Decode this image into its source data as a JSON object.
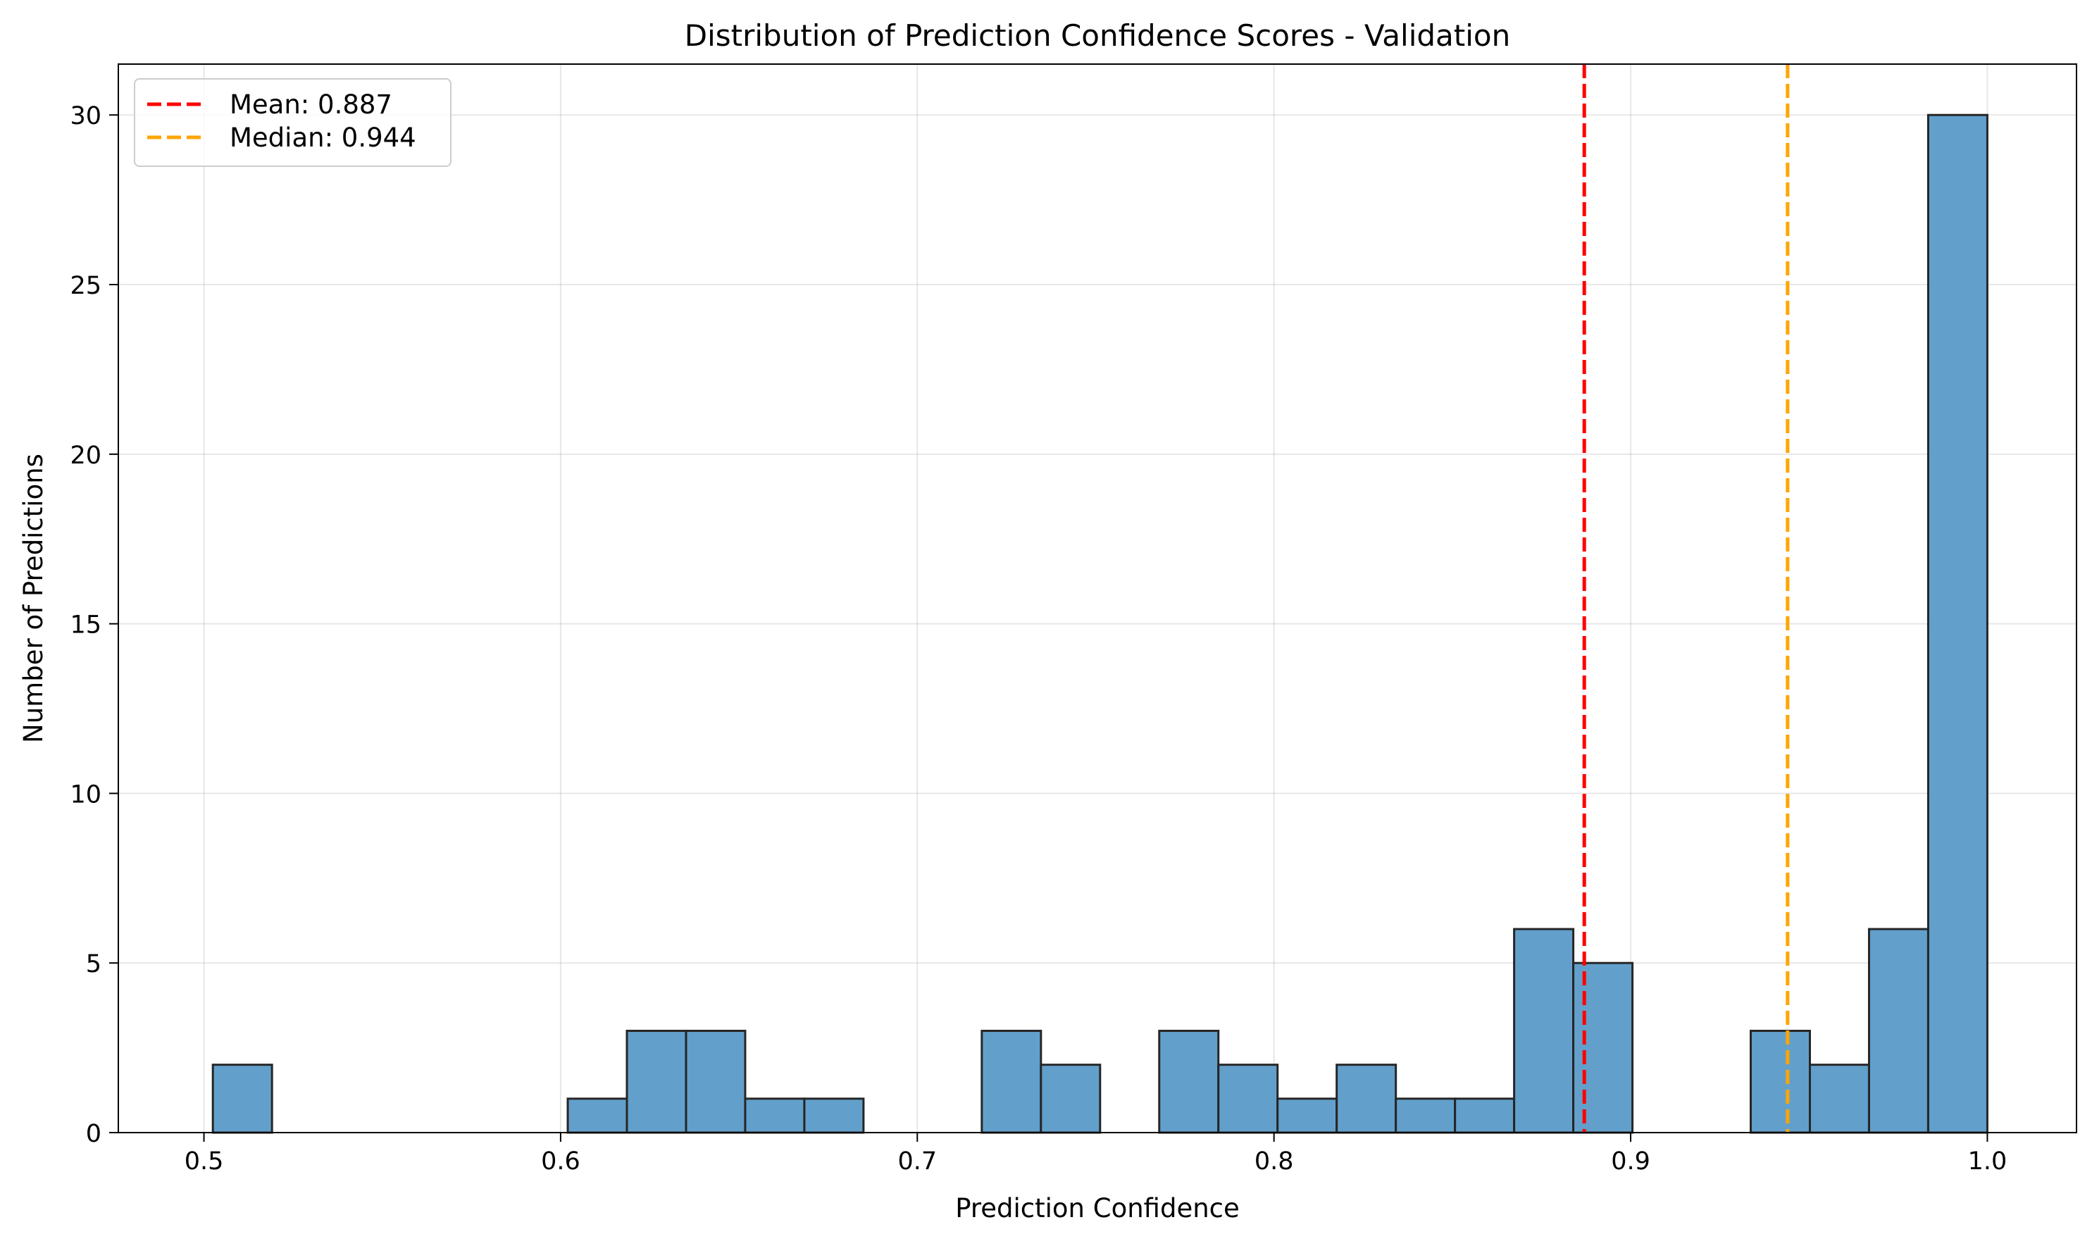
{
  "chart_data": {
    "type": "bar",
    "title": "Distribution of Prediction Confidence Scores - Validation",
    "xlabel": "Prediction Confidence",
    "ylabel": "Number of Predictions",
    "xlim": [
      0.476,
      1.025
    ],
    "ylim": [
      0,
      31.5
    ],
    "grid": true,
    "legend_position": "top-left",
    "bar_color": "#62a0cb",
    "bar_edge_color": "#262626",
    "x_ticks": [
      {
        "value": 0.5,
        "label": "0.5"
      },
      {
        "value": 0.6,
        "label": "0.6"
      },
      {
        "value": 0.7,
        "label": "0.7"
      },
      {
        "value": 0.8,
        "label": "0.8"
      },
      {
        "value": 0.9,
        "label": "0.9"
      },
      {
        "value": 1.0,
        "label": "1.0"
      }
    ],
    "y_ticks": [
      {
        "value": 0,
        "label": "0"
      },
      {
        "value": 5,
        "label": "5"
      },
      {
        "value": 10,
        "label": "10"
      },
      {
        "value": 15,
        "label": "15"
      },
      {
        "value": 20,
        "label": "20"
      },
      {
        "value": 25,
        "label": "25"
      },
      {
        "value": 30,
        "label": "30"
      }
    ],
    "bin_start": 0.5025,
    "bin_end": 1.0,
    "bin_counts": [
      2,
      0,
      0,
      0,
      0,
      0,
      1,
      3,
      3,
      1,
      1,
      0,
      0,
      3,
      2,
      0,
      3,
      2,
      1,
      2,
      1,
      1,
      6,
      5,
      0,
      0,
      3,
      2,
      6,
      30
    ],
    "reference_lines": [
      {
        "value": 0.887,
        "label": "Mean: 0.887",
        "color": "#ff0000"
      },
      {
        "value": 0.944,
        "label": "Median: 0.944",
        "color": "#ffa500"
      }
    ]
  }
}
